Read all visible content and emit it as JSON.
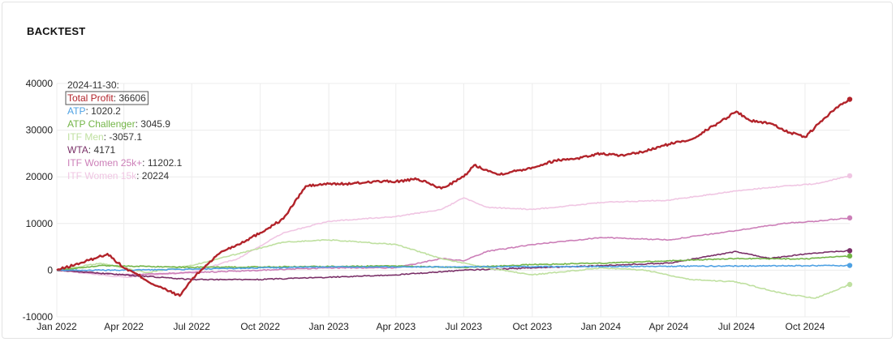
{
  "panel": {
    "title": "BACKTEST"
  },
  "chart_data": {
    "type": "line",
    "x_range": [
      "2022-01-01",
      "2024-11-30"
    ],
    "ylim": [
      -10000,
      40000
    ],
    "y_ticks": [
      40000,
      30000,
      20000,
      10000,
      0,
      -10000
    ],
    "x_ticks": [
      {
        "date": "2022-01-01",
        "label": "Jan 2022"
      },
      {
        "date": "2022-04-01",
        "label": "Apr 2022"
      },
      {
        "date": "2022-07-01",
        "label": "Jul 2022"
      },
      {
        "date": "2022-10-01",
        "label": "Oct 2022"
      },
      {
        "date": "2023-01-01",
        "label": "Jan 2023"
      },
      {
        "date": "2023-04-01",
        "label": "Apr 2023"
      },
      {
        "date": "2023-07-01",
        "label": "Jul 2023"
      },
      {
        "date": "2023-10-01",
        "label": "Oct 2023"
      },
      {
        "date": "2024-01-01",
        "label": "Jan 2024"
      },
      {
        "date": "2024-04-01",
        "label": "Apr 2024"
      },
      {
        "date": "2024-07-01",
        "label": "Jul 2024"
      },
      {
        "date": "2024-10-01",
        "label": "Oct 2024"
      }
    ],
    "grid": true,
    "legend": {
      "date": "2024-11-30:",
      "placement": "top-left",
      "highlighted": "Total Profit"
    },
    "series": [
      {
        "name": "Total Profit",
        "value": "36606",
        "color": "#b2232a",
        "points": [
          [
            "2022-01-01",
            0
          ],
          [
            "2022-02-01",
            1500
          ],
          [
            "2022-02-20",
            2500
          ],
          [
            "2022-03-10",
            3500
          ],
          [
            "2022-04-01",
            500
          ],
          [
            "2022-04-20",
            -1000
          ],
          [
            "2022-05-10",
            -3000
          ],
          [
            "2022-06-01",
            -4500
          ],
          [
            "2022-06-15",
            -5500
          ],
          [
            "2022-07-01",
            -2000
          ],
          [
            "2022-07-20",
            1000
          ],
          [
            "2022-08-10",
            4000
          ],
          [
            "2022-09-01",
            5500
          ],
          [
            "2022-10-01",
            8000
          ],
          [
            "2022-11-01",
            11000
          ],
          [
            "2022-12-01",
            18000
          ],
          [
            "2023-01-01",
            18500
          ],
          [
            "2023-02-01",
            18500
          ],
          [
            "2023-03-01",
            19000
          ],
          [
            "2023-04-01",
            19000
          ],
          [
            "2023-05-01",
            19500
          ],
          [
            "2023-06-01",
            17500
          ],
          [
            "2023-07-01",
            20000
          ],
          [
            "2023-07-15",
            22500
          ],
          [
            "2023-08-01",
            21500
          ],
          [
            "2023-08-15",
            20500
          ],
          [
            "2023-09-01",
            21000
          ],
          [
            "2023-10-01",
            22000
          ],
          [
            "2023-11-01",
            23500
          ],
          [
            "2023-12-01",
            24000
          ],
          [
            "2024-01-01",
            25000
          ],
          [
            "2024-02-01",
            24500
          ],
          [
            "2024-03-01",
            25500
          ],
          [
            "2024-04-01",
            27000
          ],
          [
            "2024-05-01",
            28000
          ],
          [
            "2024-06-01",
            31000
          ],
          [
            "2024-07-01",
            34000
          ],
          [
            "2024-07-20",
            32000
          ],
          [
            "2024-08-15",
            31500
          ],
          [
            "2024-09-10",
            29500
          ],
          [
            "2024-10-01",
            28500
          ],
          [
            "2024-10-20",
            31500
          ],
          [
            "2024-11-10",
            34500
          ],
          [
            "2024-11-30",
            36606
          ]
        ]
      },
      {
        "name": "ATP",
        "value": "1020.2",
        "color": "#4ea1e3",
        "points": [
          [
            "2022-01-01",
            0
          ],
          [
            "2022-04-01",
            0
          ],
          [
            "2022-07-01",
            200
          ],
          [
            "2022-10-01",
            500
          ],
          [
            "2023-01-01",
            700
          ],
          [
            "2023-04-01",
            700
          ],
          [
            "2023-07-01",
            700
          ],
          [
            "2023-10-01",
            750
          ],
          [
            "2024-01-01",
            800
          ],
          [
            "2024-04-01",
            850
          ],
          [
            "2024-07-01",
            900
          ],
          [
            "2024-10-01",
            950
          ],
          [
            "2024-11-30",
            1020.2
          ]
        ]
      },
      {
        "name": "ATP Challenger",
        "value": "3045.9",
        "color": "#73b547",
        "points": [
          [
            "2022-01-01",
            0
          ],
          [
            "2022-03-01",
            1000
          ],
          [
            "2022-05-01",
            800
          ],
          [
            "2022-07-01",
            600
          ],
          [
            "2022-10-01",
            700
          ],
          [
            "2023-01-01",
            800
          ],
          [
            "2023-04-01",
            900
          ],
          [
            "2023-07-01",
            600
          ],
          [
            "2023-10-01",
            1200
          ],
          [
            "2024-01-01",
            1500
          ],
          [
            "2024-04-01",
            2000
          ],
          [
            "2024-07-01",
            2500
          ],
          [
            "2024-10-01",
            2400
          ],
          [
            "2024-11-30",
            3045.9
          ]
        ]
      },
      {
        "name": "ITF Men",
        "value": "-3057.1",
        "color": "#bfe0a0",
        "points": [
          [
            "2022-01-01",
            0
          ],
          [
            "2022-03-01",
            1500
          ],
          [
            "2022-05-01",
            -500
          ],
          [
            "2022-07-01",
            1000
          ],
          [
            "2022-09-01",
            3500
          ],
          [
            "2022-11-01",
            6000
          ],
          [
            "2023-01-01",
            6500
          ],
          [
            "2023-04-01",
            5500
          ],
          [
            "2023-06-01",
            2500
          ],
          [
            "2023-08-01",
            500
          ],
          [
            "2023-10-01",
            -1000
          ],
          [
            "2024-01-01",
            500
          ],
          [
            "2024-03-01",
            0
          ],
          [
            "2024-05-01",
            -2000
          ],
          [
            "2024-07-01",
            -2500
          ],
          [
            "2024-09-01",
            -5000
          ],
          [
            "2024-10-15",
            -6000
          ],
          [
            "2024-11-30",
            -3057.1
          ]
        ]
      },
      {
        "name": "WTA",
        "value": "4171",
        "color": "#7a3068",
        "points": [
          [
            "2022-01-01",
            0
          ],
          [
            "2022-04-01",
            -1000
          ],
          [
            "2022-07-01",
            -2000
          ],
          [
            "2022-10-01",
            -2000
          ],
          [
            "2023-01-01",
            -1500
          ],
          [
            "2023-04-01",
            -1000
          ],
          [
            "2023-07-01",
            0
          ],
          [
            "2023-10-01",
            500
          ],
          [
            "2024-01-01",
            1000
          ],
          [
            "2024-04-01",
            1500
          ],
          [
            "2024-07-01",
            4000
          ],
          [
            "2024-08-15",
            2500
          ],
          [
            "2024-10-01",
            3500
          ],
          [
            "2024-11-30",
            4171
          ]
        ]
      },
      {
        "name": "ITF Women 25k+",
        "value": "11202.1",
        "color": "#cc7fb8",
        "points": [
          [
            "2022-01-01",
            0
          ],
          [
            "2022-04-01",
            -1000
          ],
          [
            "2022-07-01",
            -500
          ],
          [
            "2022-10-01",
            0
          ],
          [
            "2023-01-01",
            500
          ],
          [
            "2023-04-01",
            500
          ],
          [
            "2023-06-01",
            2500
          ],
          [
            "2023-07-01",
            2000
          ],
          [
            "2023-08-01",
            4000
          ],
          [
            "2023-10-01",
            5500
          ],
          [
            "2024-01-01",
            7000
          ],
          [
            "2024-04-01",
            6500
          ],
          [
            "2024-07-01",
            8500
          ],
          [
            "2024-09-01",
            10000
          ],
          [
            "2024-10-15",
            10500
          ],
          [
            "2024-11-30",
            11202.1
          ]
        ]
      },
      {
        "name": "ITF Women 15k",
        "value": "20224",
        "color": "#f0c6e3",
        "points": [
          [
            "2022-01-01",
            0
          ],
          [
            "2022-04-01",
            -1500
          ],
          [
            "2022-07-01",
            -500
          ],
          [
            "2022-09-01",
            2500
          ],
          [
            "2022-11-01",
            8000
          ],
          [
            "2023-01-01",
            10500
          ],
          [
            "2023-04-01",
            11500
          ],
          [
            "2023-06-01",
            13000
          ],
          [
            "2023-07-01",
            15500
          ],
          [
            "2023-08-01",
            13500
          ],
          [
            "2023-10-01",
            13000
          ],
          [
            "2024-01-01",
            14500
          ],
          [
            "2024-04-01",
            15000
          ],
          [
            "2024-07-01",
            17000
          ],
          [
            "2024-09-01",
            18000
          ],
          [
            "2024-10-15",
            18500
          ],
          [
            "2024-11-30",
            20224
          ]
        ]
      }
    ]
  }
}
